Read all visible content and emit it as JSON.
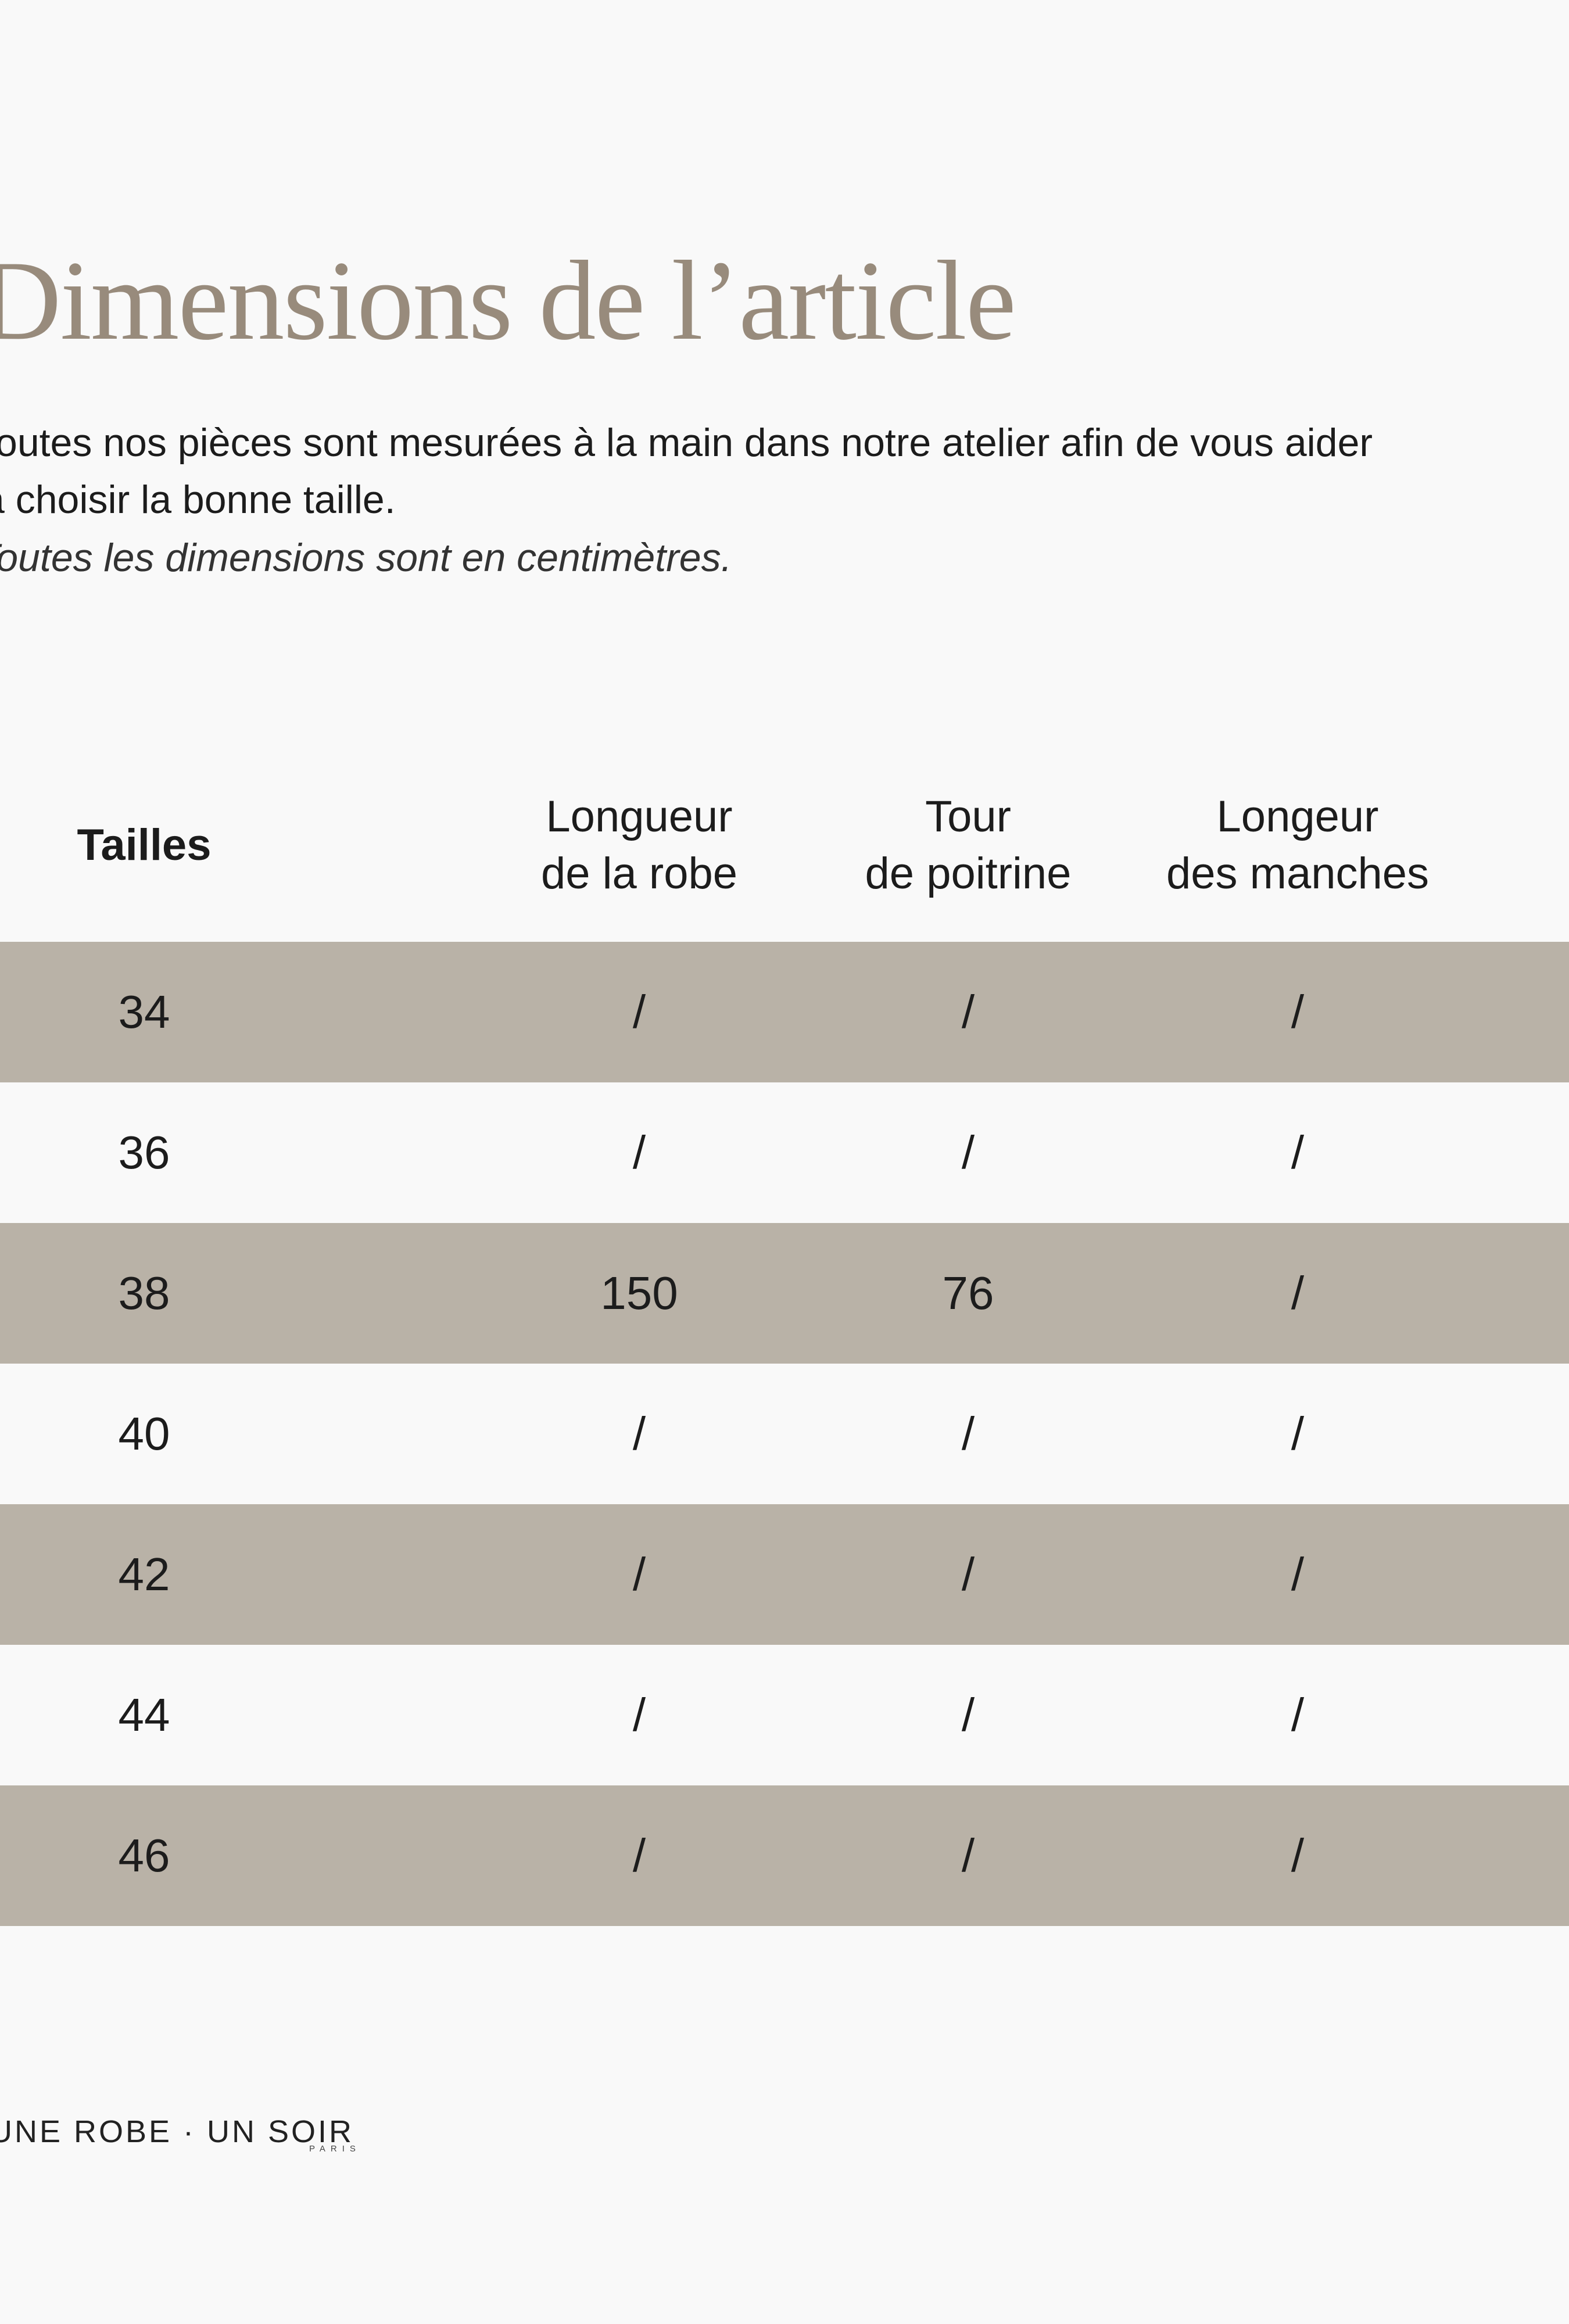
{
  "header": {
    "title": "Dimensions de l’article"
  },
  "intro": {
    "lines": [
      "Toutes nos pièces sont mesurées à la main dans notre atelier afin de vous aider",
      "à choisir la bonne taille."
    ],
    "note": "Toutes les dimensions sont en centimètres."
  },
  "table": {
    "columns": [
      [
        "Tailles"
      ],
      [
        "Longueur",
        "de la robe"
      ],
      [
        "Tour",
        "de poitrine"
      ],
      [
        "Longeur",
        "des manches"
      ]
    ],
    "rows": [
      [
        34,
        "/",
        "/",
        "/"
      ],
      [
        36,
        "/",
        "/",
        "/"
      ],
      [
        38,
        150,
        76,
        "/"
      ],
      [
        40,
        "/",
        "/",
        "/"
      ],
      [
        42,
        "/",
        "/",
        "/"
      ],
      [
        44,
        "/",
        "/",
        "/"
      ],
      [
        46,
        "/",
        "/",
        "/"
      ]
    ]
  },
  "footer": {
    "brand": "UNE ROBE · UN SOIR",
    "city": "PARIS"
  }
}
